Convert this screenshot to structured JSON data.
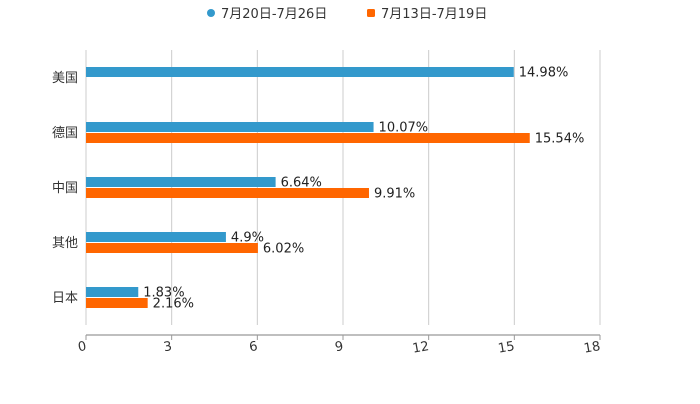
{
  "chart_data": {
    "type": "bar",
    "orientation": "horizontal",
    "title": "",
    "xlabel": "",
    "ylabel": "",
    "categories": [
      "美国",
      "德国",
      "中国",
      "其他",
      "日本"
    ],
    "series": [
      {
        "name": "7月20日-7月26日",
        "color": "#3399cc",
        "values": [
          14.98,
          10.07,
          6.64,
          4.9,
          1.83
        ],
        "labels": [
          "14.98%",
          "10.07%",
          "6.64%",
          "4.9%",
          "1.83%"
        ]
      },
      {
        "name": "7月13日-7月19日",
        "color": "#ff6600",
        "values": [
          null,
          15.54,
          9.91,
          6.02,
          2.16
        ],
        "labels": [
          null,
          "15.54%",
          "9.91%",
          "6.02%",
          "2.16%"
        ]
      }
    ],
    "xlim": [
      0,
      18
    ],
    "xticks": [
      "0",
      "3",
      "6",
      "9",
      "12",
      "15",
      "18"
    ],
    "grid": true,
    "legend_position": "top-center"
  }
}
